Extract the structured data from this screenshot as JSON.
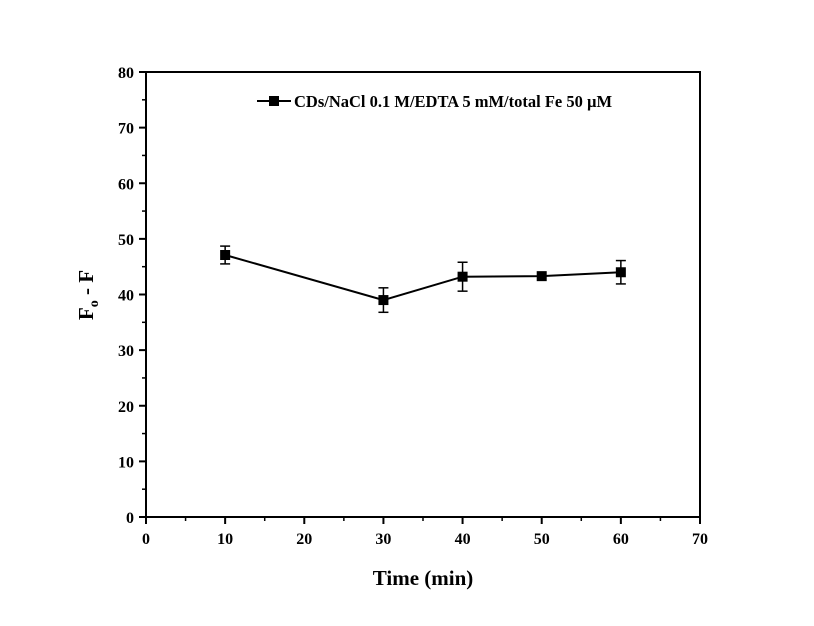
{
  "chart_data": {
    "type": "line",
    "title": "",
    "xlabel": "Time (min)",
    "ylabel_main": "F",
    "ylabel_sub": "o",
    "ylabel_rest": " - F",
    "xlim": [
      0,
      70
    ],
    "ylim": [
      0,
      80
    ],
    "xticks": [
      0,
      10,
      20,
      30,
      40,
      50,
      60,
      70
    ],
    "yticks": [
      0,
      10,
      20,
      30,
      40,
      50,
      60,
      70,
      80
    ],
    "grid": false,
    "legend_position": "top-right",
    "series": [
      {
        "name": "CDs/NaCl 0.1 M/EDTA 5 mM/total Fe 50 µM",
        "color": "#000000",
        "marker": "square",
        "x": [
          10,
          30,
          40,
          50,
          60
        ],
        "y": [
          47.1,
          39.0,
          43.2,
          43.3,
          44.0
        ],
        "error": [
          1.6,
          2.2,
          2.6,
          0.3,
          2.1
        ]
      }
    ]
  }
}
